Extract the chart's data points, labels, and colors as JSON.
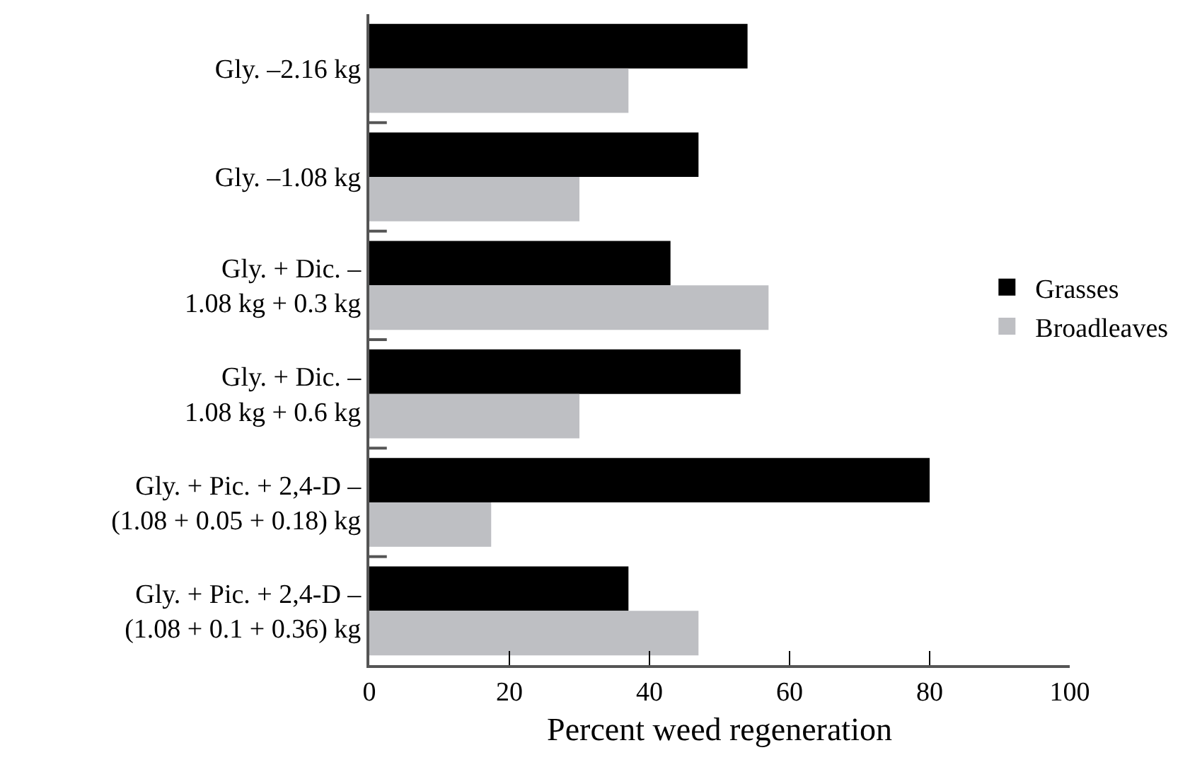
{
  "chart_data": {
    "type": "bar",
    "orientation": "horizontal",
    "xlabel": "Percent weed regeneration",
    "categories": [
      "Gly. –2.16 kg",
      "Gly. –1.08 kg",
      "Gly. + Dic. –\n1.08 kg + 0.3 kg",
      "Gly. + Dic. –\n1.08 kg + 0.6 kg",
      "Gly. + Pic. + 2,4-D –\n(1.08 + 0.05 + 0.18) kg",
      "Gly. + Pic. + 2,4-D –\n(1.08 + 0.1 + 0.36) kg"
    ],
    "series": [
      {
        "name": "Grasses",
        "color": "#000000",
        "values": [
          54,
          47,
          43,
          53,
          80,
          37
        ]
      },
      {
        "name": "Broadleaves",
        "color": "#bebfc3",
        "values": [
          37,
          30,
          57,
          30,
          17.4,
          47
        ]
      }
    ],
    "xlim": [
      0,
      100
    ],
    "xticks": [
      0,
      20,
      40,
      60,
      80,
      100
    ],
    "legend": "right"
  }
}
